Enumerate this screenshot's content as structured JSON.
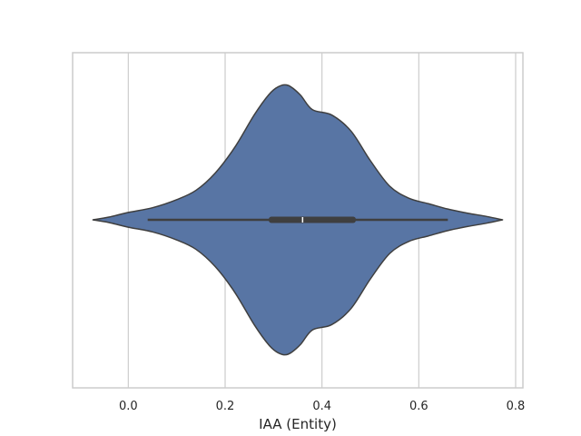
{
  "chart_data": {
    "type": "violin",
    "xlabel": "IAA (Entity)",
    "xlim": [
      -0.115,
      0.815
    ],
    "xticks": [
      0.0,
      0.2,
      0.4,
      0.6,
      0.8
    ],
    "tick_labels": [
      "0.0",
      "0.2",
      "0.4",
      "0.6",
      "0.8"
    ],
    "grid": true,
    "orientation": "horizontal",
    "colors": {
      "fill": "#5875a4",
      "edge": "#3f3f3f",
      "grid": "#cccccc",
      "frame": "#cccccc",
      "median": "#ffffff"
    },
    "summary": {
      "min": 0.04,
      "q1": 0.29,
      "median": 0.36,
      "q3": 0.47,
      "max": 0.66,
      "density_min": -0.073,
      "density_max": 0.773
    },
    "density_profile": [
      [
        -0.073,
        0.0
      ],
      [
        -0.04,
        0.02
      ],
      [
        0.0,
        0.055
      ],
      [
        0.05,
        0.09
      ],
      [
        0.1,
        0.15
      ],
      [
        0.14,
        0.22
      ],
      [
        0.18,
        0.35
      ],
      [
        0.22,
        0.54
      ],
      [
        0.26,
        0.78
      ],
      [
        0.29,
        0.93
      ],
      [
        0.31,
        0.99
      ],
      [
        0.33,
        1.0
      ],
      [
        0.355,
        0.93
      ],
      [
        0.38,
        0.82
      ],
      [
        0.42,
        0.78
      ],
      [
        0.46,
        0.66
      ],
      [
        0.5,
        0.44
      ],
      [
        0.54,
        0.25
      ],
      [
        0.58,
        0.16
      ],
      [
        0.62,
        0.12
      ],
      [
        0.66,
        0.08
      ],
      [
        0.7,
        0.05
      ],
      [
        0.74,
        0.025
      ],
      [
        0.773,
        0.0
      ]
    ]
  }
}
